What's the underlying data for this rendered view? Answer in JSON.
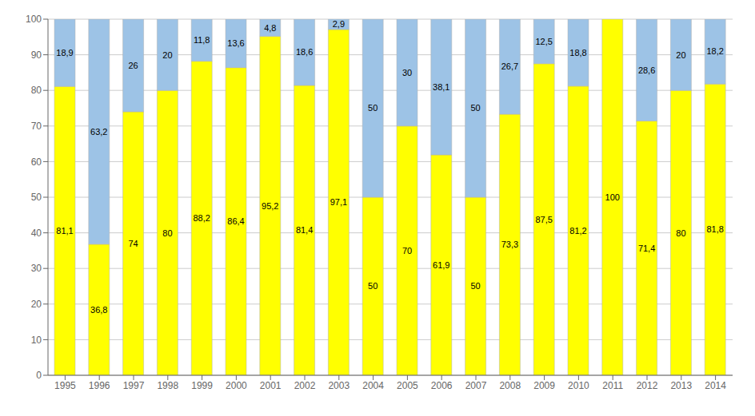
{
  "chart_data": {
    "type": "bar",
    "categories": [
      "1995",
      "1996",
      "1997",
      "1998",
      "1999",
      "2000",
      "2001",
      "2002",
      "2003",
      "2004",
      "2005",
      "2006",
      "2007",
      "2008",
      "2009",
      "2010",
      "2011",
      "2012",
      "2013",
      "2014"
    ],
    "series": [
      {
        "color": "#FFFF00",
        "values": [
          81.1,
          36.8,
          74.0,
          80.0,
          88.2,
          86.4,
          95.2,
          81.4,
          97.1,
          50.0,
          70.0,
          61.9,
          50.0,
          73.3,
          87.5,
          81.2,
          100.0,
          71.4,
          80.0,
          81.8
        ],
        "value_labels": [
          "81,1",
          "36,8",
          "74",
          "80",
          "88,2",
          "86,4",
          "95,2",
          "81,4",
          "97,1",
          "50",
          "70",
          "61,9",
          "50",
          "73,3",
          "87,5",
          "81,2",
          "100",
          "71,4",
          "80",
          "81,8"
        ]
      },
      {
        "color": "#9DC3E6",
        "values": [
          18.9,
          63.2,
          26.0,
          20.0,
          11.8,
          13.6,
          4.8,
          18.6,
          2.9,
          50.0,
          30.0,
          38.1,
          50.0,
          26.7,
          12.5,
          18.8,
          0.0,
          28.6,
          20.0,
          18.2
        ],
        "value_labels": [
          "18,9",
          "63,2",
          "26",
          "20",
          "11,8",
          "13,6",
          "4,8",
          "18,6",
          "2,9",
          "50",
          "30",
          "38,1",
          "50",
          "26,7",
          "12,5",
          "18,8",
          null,
          "28,6",
          "20",
          "18,2"
        ]
      }
    ],
    "stacked": true,
    "data_labels": true,
    "grid": true,
    "ylim": [
      0,
      100
    ],
    "yticks": [
      0,
      10,
      20,
      30,
      40,
      50,
      60,
      70,
      80,
      90,
      100
    ]
  }
}
